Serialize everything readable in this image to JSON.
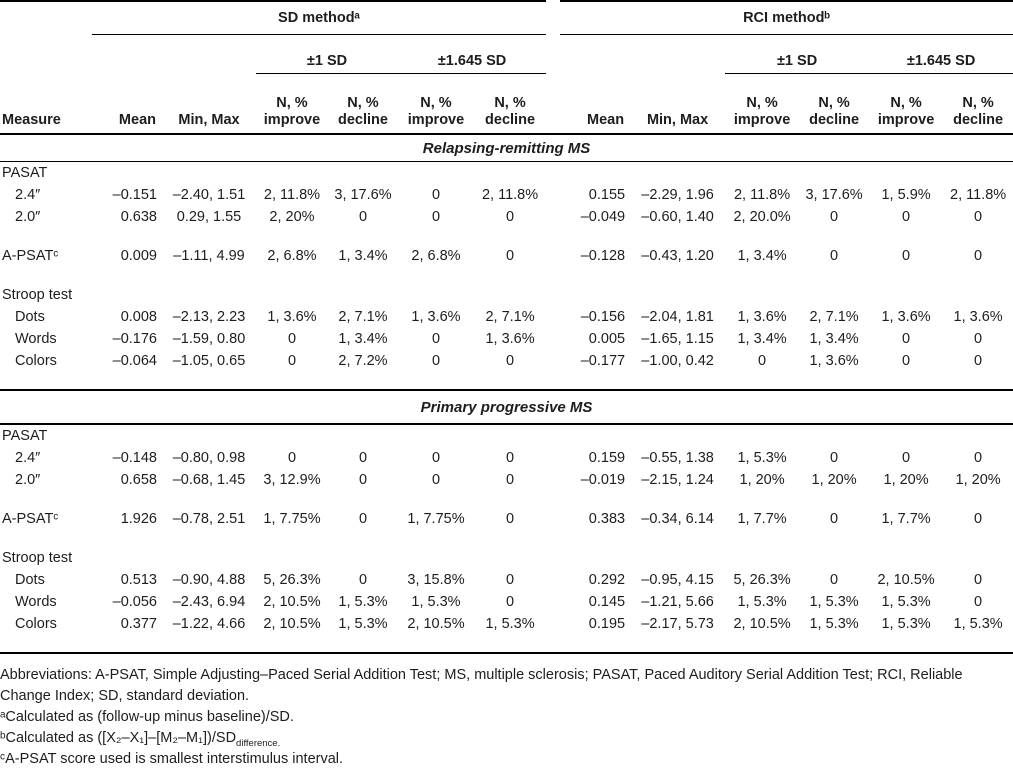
{
  "table": {
    "col_headers": {
      "measure": "Measure",
      "sd_method": "SD methodᵃ",
      "rci_method": "RCI methodᵇ",
      "pm1sd": "±1 SD",
      "pm1645sd": "±1.645 SD",
      "mean": "Mean",
      "min_max": "Min, Max",
      "n_improve": "N, %\nimprove",
      "n_decline": "N, %\ndecline"
    },
    "sections": [
      {
        "title": "Relapsing-remitting MS",
        "rows": [
          {
            "type": "group",
            "label": "PASAT"
          },
          {
            "type": "data",
            "label": "2.4″",
            "indent": true,
            "values": [
              "–0.151",
              "–2.40, 1.51",
              "2, 11.8%",
              "3, 17.6%",
              "0",
              "2, 11.8%",
              "0.155",
              "–2.29, 1.96",
              "2, 11.8%",
              "3, 17.6%",
              "1, 5.9%",
              "2, 11.8%"
            ]
          },
          {
            "type": "data",
            "label": "2.0″",
            "indent": true,
            "values": [
              "0.638",
              "0.29, 1.55",
              "2, 20%",
              "0",
              "0",
              "0",
              "–0.049",
              "–0.60, 1.40",
              "2, 20.0%",
              "0",
              "0",
              "0"
            ]
          },
          {
            "type": "gap"
          },
          {
            "type": "data",
            "label": "A-PSATᶜ",
            "indent": false,
            "values": [
              "0.009",
              "–1.11, 4.99",
              "2, 6.8%",
              "1, 3.4%",
              "2, 6.8%",
              "0",
              "–0.128",
              "–0.43, 1.20",
              "1, 3.4%",
              "0",
              "0",
              "0"
            ]
          },
          {
            "type": "gap"
          },
          {
            "type": "group",
            "label": "Stroop test"
          },
          {
            "type": "data",
            "label": "Dots",
            "indent": true,
            "values": [
              "0.008",
              "–2.13, 2.23",
              "1, 3.6%",
              "2, 7.1%",
              "1, 3.6%",
              "2, 7.1%",
              "–0.156",
              "–2.04, 1.81",
              "1, 3.6%",
              "2, 7.1%",
              "1, 3.6%",
              "1, 3.6%"
            ]
          },
          {
            "type": "data",
            "label": "Words",
            "indent": true,
            "values": [
              "–0.176",
              "–1.59, 0.80",
              "0",
              "1, 3.4%",
              "0",
              "1, 3.6%",
              "0.005",
              "–1.65, 1.15",
              "1, 3.4%",
              "1, 3.4%",
              "0",
              "0"
            ]
          },
          {
            "type": "data",
            "label": "Colors",
            "indent": true,
            "values": [
              "–0.064",
              "–1.05, 0.65",
              "0",
              "2, 7.2%",
              "0",
              "0",
              "–0.177",
              "–1.00, 0.42",
              "0",
              "1, 3.6%",
              "0",
              "0"
            ]
          },
          {
            "type": "gap"
          }
        ]
      },
      {
        "title": "Primary progressive MS",
        "rows": [
          {
            "type": "group",
            "label": "PASAT"
          },
          {
            "type": "data",
            "label": "2.4″",
            "indent": true,
            "values": [
              "–0.148",
              "–0.80, 0.98",
              "0",
              "0",
              "0",
              "0",
              "0.159",
              "–0.55, 1.38",
              "1, 5.3%",
              "0",
              "0",
              "0"
            ]
          },
          {
            "type": "data",
            "label": "2.0″",
            "indent": true,
            "values": [
              "0.658",
              "–0.68, 1.45",
              "3, 12.9%",
              "0",
              "0",
              "0",
              "–0.019",
              "–2.15, 1.24",
              "1, 20%",
              "1, 20%",
              "1, 20%",
              "1, 20%"
            ]
          },
          {
            "type": "gap"
          },
          {
            "type": "data",
            "label": "A-PSATᶜ",
            "indent": false,
            "values": [
              "1.926",
              "–0.78, 2.51",
              "1, 7.75%",
              "0",
              "1, 7.75%",
              "0",
              "0.383",
              "–0.34, 6.14",
              "1, 7.7%",
              "0",
              "1, 7.7%",
              "0"
            ]
          },
          {
            "type": "gap"
          },
          {
            "type": "group",
            "label": "Stroop test"
          },
          {
            "type": "data",
            "label": "Dots",
            "indent": true,
            "values": [
              "0.513",
              "–0.90, 4.88",
              "5, 26.3%",
              "0",
              "3, 15.8%",
              "0",
              "0.292",
              "–0.95, 4.15",
              "5, 26.3%",
              "0",
              "2, 10.5%",
              "0"
            ]
          },
          {
            "type": "data",
            "label": "Words",
            "indent": true,
            "values": [
              "–0.056",
              "–2.43, 6.94",
              "2, 10.5%",
              "1, 5.3%",
              "1, 5.3%",
              "0",
              "0.145",
              "–1.21, 5.66",
              "1, 5.3%",
              "1, 5.3%",
              "1, 5.3%",
              "0"
            ]
          },
          {
            "type": "data",
            "label": "Colors",
            "indent": true,
            "values": [
              "0.377",
              "–1.22, 4.66",
              "2, 10.5%",
              "1, 5.3%",
              "2, 10.5%",
              "1, 5.3%",
              "0.195",
              "–2.17, 5.73",
              "2, 10.5%",
              "1, 5.3%",
              "1, 5.3%",
              "1, 5.3%"
            ]
          },
          {
            "type": "gap"
          }
        ]
      }
    ]
  },
  "footnotes": {
    "abbreviations": "Abbreviations: A-PSAT, Simple Adjusting–Paced Serial Addition Test; MS, multiple sclerosis; PASAT, Paced Auditory Serial Addition Test; RCI, Reliable Change Index; SD, standard deviation.",
    "a": "ᵃCalculated as (follow-up minus baseline)/SD.",
    "b_main": "ᵇCalculated as ([X₂–X₁]–[M₂–M₁])/SD",
    "b_sub": "difference.",
    "c": "ᶜA-PSAT score used is smallest interstimulus interval."
  }
}
